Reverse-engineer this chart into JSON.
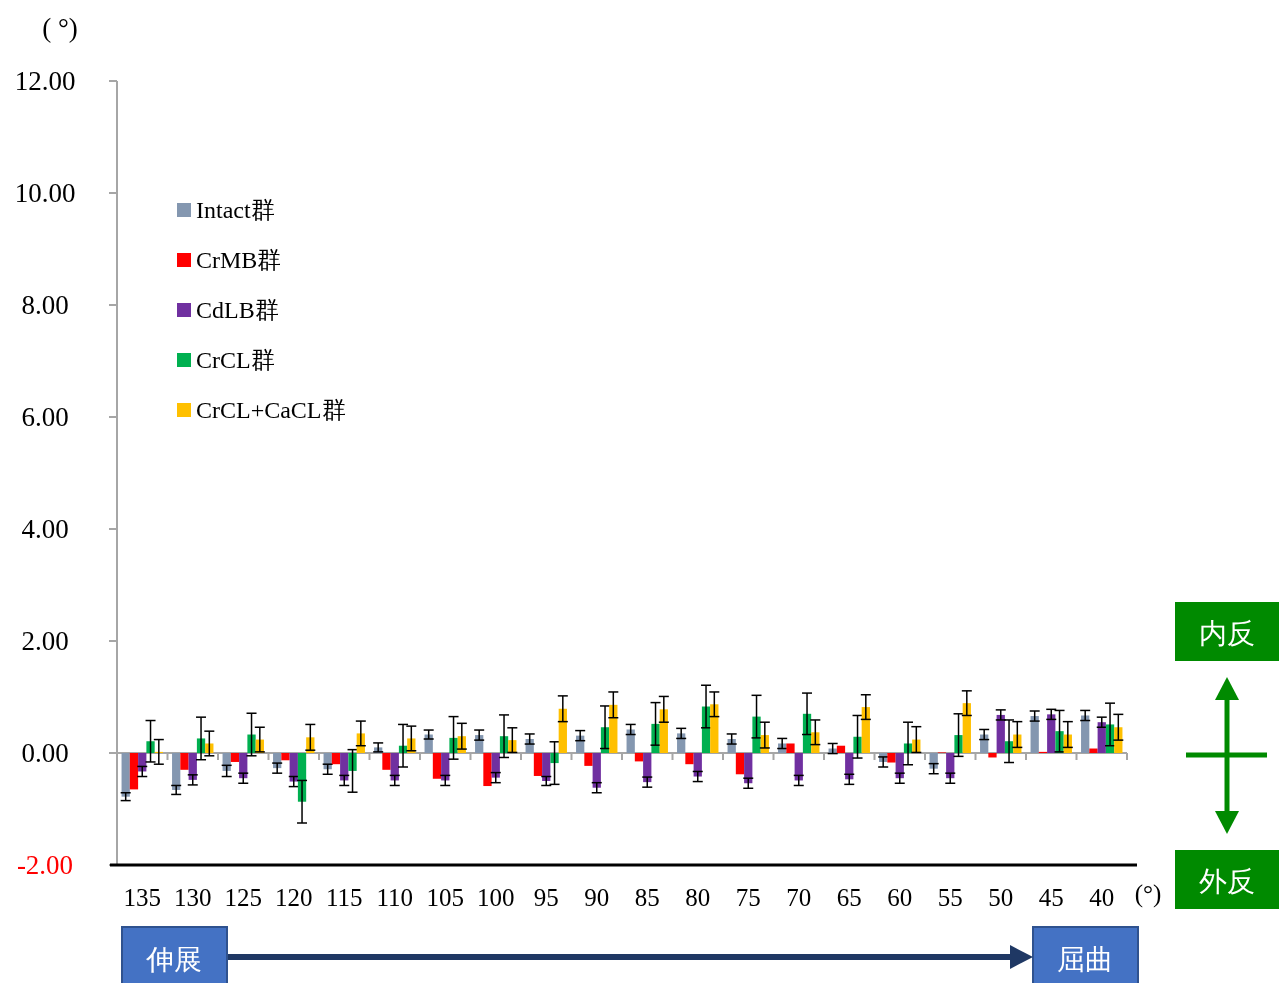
{
  "chart_data": {
    "type": "bar",
    "ylabel": "( °)",
    "xlabel": "(°)",
    "categories": [
      "135",
      "130",
      "125",
      "120",
      "115",
      "110",
      "105",
      "100",
      "95",
      "90",
      "85",
      "80",
      "75",
      "70",
      "65",
      "60",
      "55",
      "50",
      "45",
      "40"
    ],
    "series": [
      {
        "name": "Intact群",
        "color": "#8497b0",
        "values": [
          -0.78,
          -0.66,
          -0.32,
          -0.27,
          -0.29,
          0.1,
          0.33,
          0.32,
          0.25,
          0.31,
          0.42,
          0.35,
          0.25,
          0.17,
          0.08,
          -0.16,
          -0.28,
          0.33,
          0.66,
          0.67
        ],
        "errors": [
          0.07,
          0.08,
          0.1,
          0.09,
          0.09,
          0.08,
          0.08,
          0.09,
          0.09,
          0.09,
          0.09,
          0.09,
          0.09,
          0.09,
          0.09,
          0.09,
          0.09,
          0.09,
          0.09,
          0.09
        ]
      },
      {
        "name": "CrMB群",
        "color": "#ff0000",
        "values": [
          -0.65,
          -0.3,
          -0.16,
          -0.13,
          -0.2,
          -0.3,
          -0.46,
          -0.59,
          -0.41,
          -0.23,
          -0.15,
          -0.2,
          -0.38,
          0.17,
          0.13,
          -0.17,
          0.01,
          -0.08,
          0.02,
          0.08
        ]
      },
      {
        "name": "CdLB群",
        "color": "#7030a0",
        "values": [
          -0.33,
          -0.48,
          -0.45,
          -0.51,
          -0.49,
          -0.49,
          -0.49,
          -0.44,
          -0.5,
          -0.62,
          -0.52,
          -0.42,
          -0.54,
          -0.49,
          -0.47,
          -0.45,
          -0.45,
          0.68,
          0.69,
          0.55
        ],
        "errors": [
          0.09,
          0.09,
          0.09,
          0.09,
          0.09,
          0.09,
          0.09,
          0.09,
          0.08,
          0.09,
          0.09,
          0.09,
          0.09,
          0.09,
          0.09,
          0.09,
          0.09,
          0.09,
          0.09,
          0.09
        ]
      },
      {
        "name": "CrCL群",
        "color": "#00b050",
        "values": [
          0.21,
          0.26,
          0.33,
          -0.87,
          -0.32,
          0.13,
          0.27,
          0.3,
          -0.18,
          0.46,
          0.52,
          0.83,
          0.65,
          0.7,
          0.29,
          0.17,
          0.32,
          0.21,
          0.39,
          0.51
        ],
        "errors": [
          0.37,
          0.38,
          0.38,
          0.38,
          0.38,
          0.38,
          0.38,
          0.38,
          0.38,
          0.38,
          0.38,
          0.38,
          0.38,
          0.37,
          0.38,
          0.38,
          0.38,
          0.38,
          0.37,
          0.38
        ]
      },
      {
        "name": "CrCL+CaCL群",
        "color": "#ffc000",
        "values": [
          0.02,
          0.17,
          0.24,
          0.28,
          0.35,
          0.26,
          0.3,
          0.23,
          0.79,
          0.86,
          0.78,
          0.87,
          0.32,
          0.37,
          0.82,
          0.24,
          0.89,
          0.33,
          0.33,
          0.46
        ],
        "errors": [
          0.22,
          0.22,
          0.22,
          0.23,
          0.22,
          0.22,
          0.23,
          0.22,
          0.23,
          0.23,
          0.23,
          0.22,
          0.23,
          0.22,
          0.22,
          0.23,
          0.22,
          0.23,
          0.23,
          0.23
        ]
      }
    ],
    "ylim": [
      -2,
      12
    ],
    "yticks": [
      {
        "value": -2,
        "label": "-2.00"
      },
      {
        "value": 0,
        "label": "0.00"
      },
      {
        "value": 2,
        "label": "2.00"
      },
      {
        "value": 4,
        "label": "4.00"
      },
      {
        "value": 6,
        "label": "6.00"
      },
      {
        "value": 8,
        "label": "8.00"
      },
      {
        "value": 10,
        "label": "10.00"
      },
      {
        "value": 12,
        "label": "12.00"
      }
    ],
    "grid": false,
    "legend": "top left",
    "annotations": [
      "伸展",
      "屈曲",
      "内反",
      "外反"
    ]
  }
}
